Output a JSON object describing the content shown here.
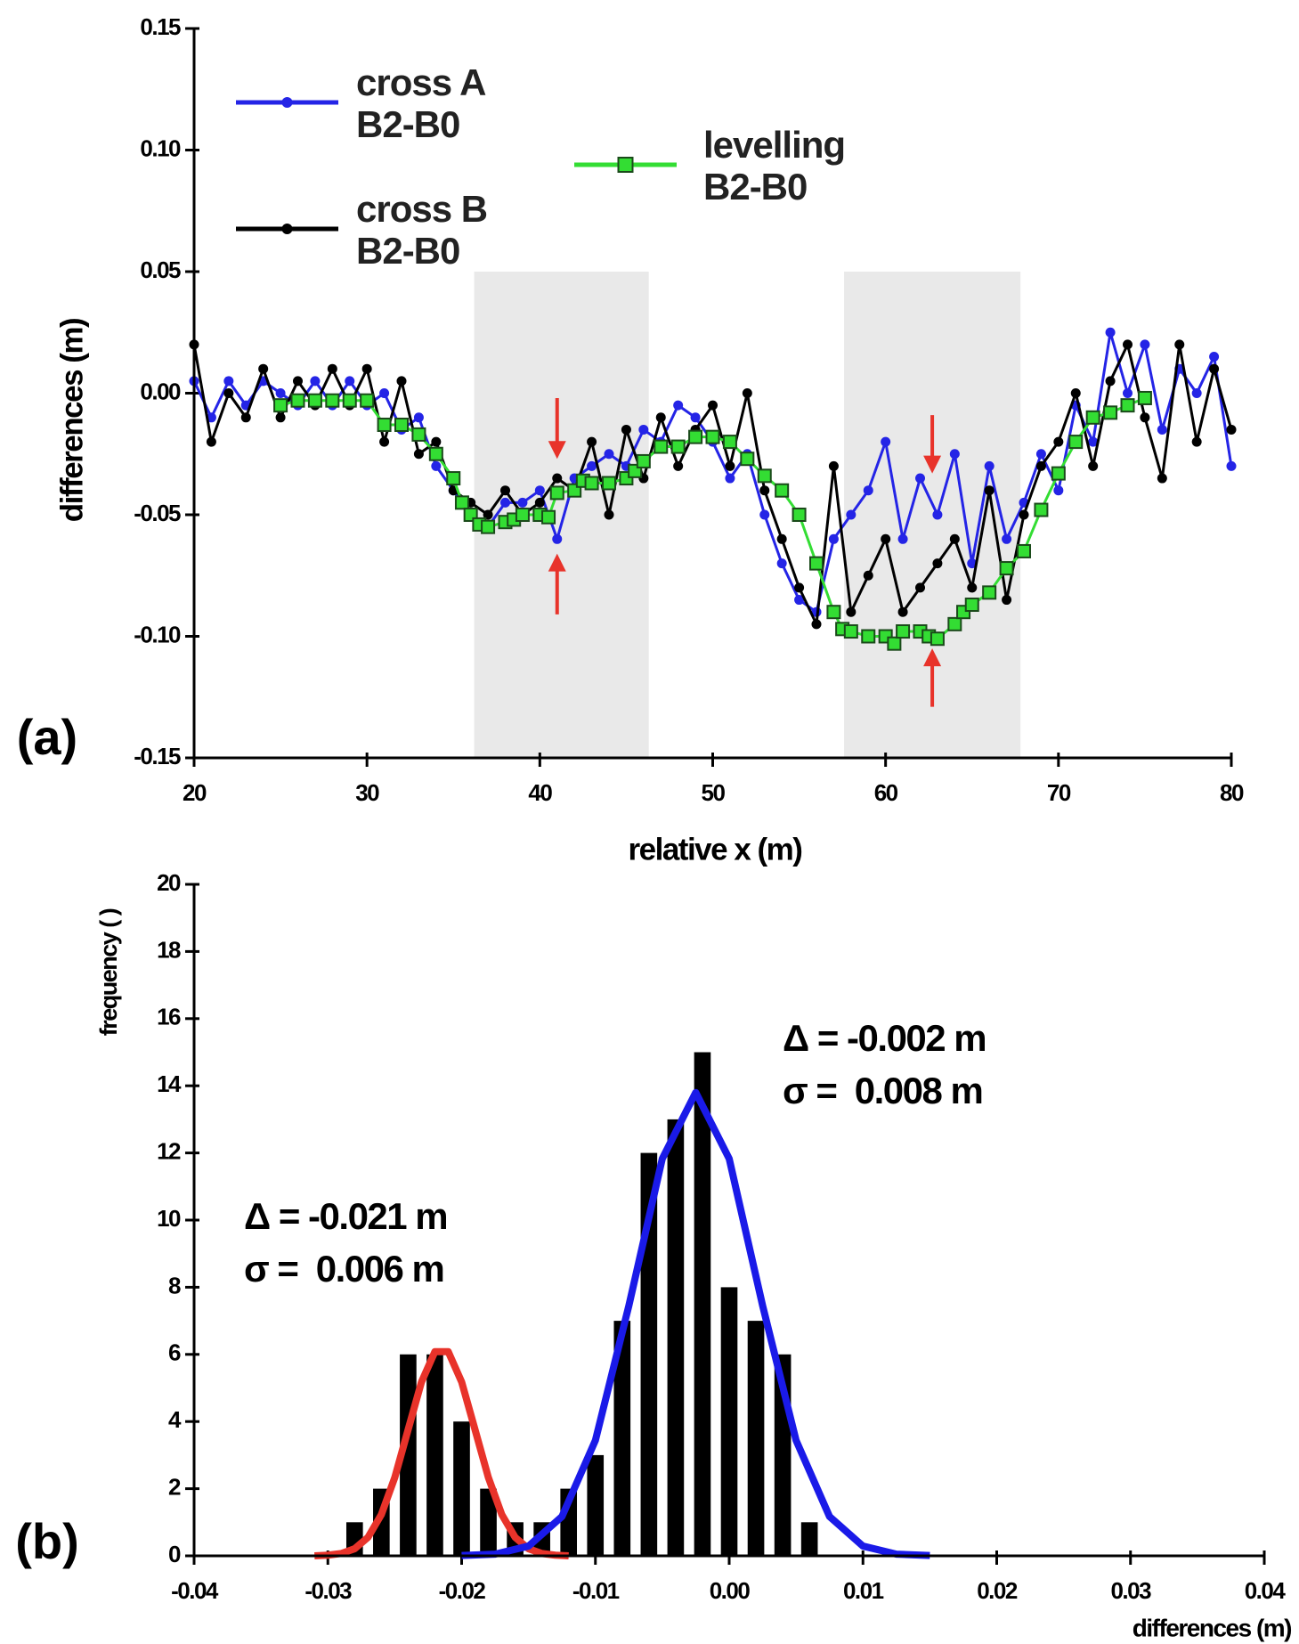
{
  "chart_data": [
    {
      "type": "line",
      "panel_label": "(a)",
      "xlabel": "relative x (m)",
      "ylabel": "differences (m)",
      "xlim": [
        20,
        80
      ],
      "ylim": [
        -0.15,
        0.15
      ],
      "xticks": [
        20,
        30,
        40,
        50,
        60,
        70,
        80
      ],
      "yticks": [
        -0.15,
        {
          "value": -0.1,
          "label": "-0.10"
        },
        -0.05,
        {
          "value": 0,
          "label": "0.00"
        },
        0.05,
        {
          "value": 0.1,
          "label": "0.10"
        },
        0.15
      ],
      "shaded_regions": [
        {
          "x": [
            36.2,
            46.3
          ],
          "y": [
            -0.15,
            0.05
          ]
        },
        {
          "x": [
            57.6,
            67.8
          ],
          "y": [
            -0.15,
            0.05
          ]
        }
      ],
      "arrows": [
        {
          "x": 41,
          "from": -0.002,
          "to": -0.027,
          "color": "#e8332a"
        },
        {
          "x": 41,
          "from": -0.091,
          "to": -0.066,
          "color": "#e8332a"
        },
        {
          "x": 62.7,
          "from": -0.009,
          "to": -0.033,
          "color": "#e8332a"
        },
        {
          "x": 62.7,
          "from": -0.129,
          "to": -0.105,
          "color": "#e8332a"
        }
      ],
      "series": [
        {
          "name": "cross A\nB2-B0",
          "color": "#2424e6",
          "marker": "circle",
          "x": [
            20,
            21,
            22,
            23,
            24,
            25,
            26,
            27,
            28,
            29,
            30,
            31,
            32,
            33,
            34,
            35,
            36,
            37,
            38,
            39,
            40,
            41,
            42,
            43,
            44,
            45,
            46,
            47,
            48,
            49,
            50,
            51,
            52,
            53,
            54,
            55,
            56,
            57,
            58,
            59,
            60,
            61,
            62,
            63,
            64,
            65,
            66,
            67,
            68,
            69,
            70,
            71,
            72,
            73,
            74,
            75,
            76,
            77,
            78,
            79,
            80
          ],
          "values": [
            0.005,
            -0.01,
            0.005,
            -0.005,
            0.005,
            0,
            -0.005,
            0.005,
            -0.005,
            0.005,
            -0.005,
            0,
            -0.015,
            -0.01,
            -0.03,
            -0.04,
            -0.05,
            -0.055,
            -0.045,
            -0.045,
            -0.04,
            -0.06,
            -0.035,
            -0.03,
            -0.025,
            -0.03,
            -0.015,
            -0.02,
            -0.005,
            -0.01,
            -0.02,
            -0.035,
            -0.025,
            -0.05,
            -0.07,
            -0.085,
            -0.09,
            -0.06,
            -0.05,
            -0.04,
            -0.02,
            -0.06,
            -0.035,
            -0.05,
            -0.025,
            -0.07,
            -0.03,
            -0.06,
            -0.045,
            -0.025,
            -0.04,
            -0.005,
            -0.02,
            0.025,
            0,
            0.02,
            -0.015,
            0.01,
            0,
            0.015,
            -0.03
          ]
        },
        {
          "name": "cross B\nB2-B0",
          "color": "#000000",
          "marker": "circle",
          "x": [
            20,
            21,
            22,
            23,
            24,
            25,
            26,
            27,
            28,
            29,
            30,
            31,
            32,
            33,
            34,
            35,
            36,
            37,
            38,
            39,
            40,
            41,
            42,
            43,
            44,
            45,
            46,
            47,
            48,
            49,
            50,
            51,
            52,
            53,
            54,
            55,
            56,
            57,
            58,
            59,
            60,
            61,
            62,
            63,
            64,
            65,
            66,
            67,
            68,
            69,
            70,
            71,
            72,
            73,
            74,
            75,
            76,
            77,
            78,
            79,
            80
          ],
          "values": [
            0.02,
            -0.02,
            0,
            -0.01,
            0.01,
            -0.01,
            0.005,
            -0.005,
            0.01,
            -0.005,
            0.01,
            -0.02,
            0.005,
            -0.025,
            -0.02,
            -0.04,
            -0.045,
            -0.05,
            -0.04,
            -0.05,
            -0.045,
            -0.035,
            -0.04,
            -0.02,
            -0.05,
            -0.015,
            -0.035,
            -0.01,
            -0.03,
            -0.015,
            -0.005,
            -0.03,
            0,
            -0.04,
            -0.06,
            -0.08,
            -0.095,
            -0.03,
            -0.09,
            -0.075,
            -0.06,
            -0.09,
            -0.08,
            -0.07,
            -0.06,
            -0.08,
            -0.04,
            -0.085,
            -0.05,
            -0.03,
            -0.02,
            0,
            -0.03,
            0.005,
            0.02,
            -0.01,
            -0.035,
            0.02,
            -0.02,
            0.01,
            -0.015
          ]
        },
        {
          "name": "levelling\nB2-B0",
          "color": "#33dd33",
          "marker": "square",
          "x": [
            25,
            26,
            27,
            28,
            29,
            30,
            31,
            32,
            33,
            34,
            35,
            35.5,
            36,
            36.5,
            37,
            38,
            38.5,
            39,
            40,
            40.5,
            41,
            42,
            42.5,
            43,
            44,
            45,
            45.5,
            46,
            47,
            48,
            49,
            50,
            51,
            52,
            53,
            54,
            55,
            56,
            57,
            57.5,
            58,
            59,
            60,
            60.5,
            61,
            62,
            62.5,
            63,
            64,
            64.5,
            65,
            66,
            67,
            68,
            69,
            70,
            71,
            72,
            73,
            74,
            75
          ],
          "values": [
            -0.005,
            -0.003,
            -0.003,
            -0.003,
            -0.003,
            -0.003,
            -0.013,
            -0.013,
            -0.017,
            -0.025,
            -0.035,
            -0.045,
            -0.05,
            -0.054,
            -0.055,
            -0.053,
            -0.052,
            -0.05,
            -0.05,
            -0.051,
            -0.041,
            -0.04,
            -0.036,
            -0.037,
            -0.037,
            -0.035,
            -0.032,
            -0.028,
            -0.022,
            -0.022,
            -0.018,
            -0.018,
            -0.02,
            -0.027,
            -0.034,
            -0.04,
            -0.05,
            -0.07,
            -0.09,
            -0.097,
            -0.098,
            -0.1,
            -0.1,
            -0.103,
            -0.098,
            -0.098,
            -0.1,
            -0.101,
            -0.095,
            -0.09,
            -0.087,
            -0.082,
            -0.072,
            -0.065,
            -0.048,
            -0.033,
            -0.02,
            -0.01,
            -0.008,
            -0.005,
            -0.002
          ]
        }
      ]
    },
    {
      "type": "histogram",
      "panel_label": "(b)",
      "xlabel": "differences (m)",
      "ylabel": "frequency ( )",
      "xlim": [
        -0.04,
        0.04
      ],
      "ylim": [
        0,
        20
      ],
      "xticks": [
        -0.04,
        -0.03,
        -0.02,
        -0.01,
        {
          "value": 0,
          "label": "0.00"
        },
        0.01,
        0.02,
        0.03,
        0.04
      ],
      "yticks": [
        0,
        2,
        4,
        6,
        8,
        10,
        12,
        14,
        16,
        18,
        20
      ],
      "color": "#000000",
      "bins": [
        -0.029,
        -0.027,
        -0.025,
        -0.023,
        -0.021,
        -0.019,
        -0.017,
        -0.015,
        -0.013,
        -0.011,
        -0.009,
        -0.007,
        -0.005,
        -0.003,
        -0.001,
        0.001,
        0.003,
        0.005,
        0.007
      ],
      "counts": [
        1,
        2,
        6,
        6,
        4,
        2,
        1,
        1,
        2,
        3,
        7,
        12,
        13,
        15,
        8,
        7,
        6,
        1
      ],
      "fits": [
        {
          "color": "#e8332a",
          "x": [
            -0.031,
            -0.03,
            -0.029,
            -0.028,
            -0.027,
            -0.026,
            -0.025,
            -0.024,
            -0.023,
            -0.022,
            -0.021,
            -0.02,
            -0.019,
            -0.018,
            -0.017,
            -0.016,
            -0.015,
            -0.014,
            -0.013,
            -0.012
          ],
          "values": [
            0,
            0.02,
            0.07,
            0.21,
            0.55,
            1.23,
            2.33,
            3.76,
            5.18,
            6.08,
            6.08,
            5.18,
            3.76,
            2.33,
            1.23,
            0.55,
            0.21,
            0.07,
            0.02,
            0
          ]
        },
        {
          "color": "#1a1ae8",
          "x": [
            -0.02,
            -0.0175,
            -0.015,
            -0.0125,
            -0.01,
            -0.0075,
            -0.005,
            -0.0025,
            0,
            0.0025,
            0.005,
            0.0075,
            0.01,
            0.0125,
            0.015
          ],
          "values": [
            0.01,
            0.05,
            0.29,
            1.17,
            3.44,
            7.45,
            11.83,
            13.8,
            11.83,
            7.45,
            3.44,
            1.17,
            0.29,
            0.05,
            0.01
          ]
        }
      ],
      "annotations": [
        "Δ = -0.002 m",
        "σ =  0.008 m",
        "Δ = -0.021 m",
        "σ =  0.006 m"
      ]
    }
  ]
}
